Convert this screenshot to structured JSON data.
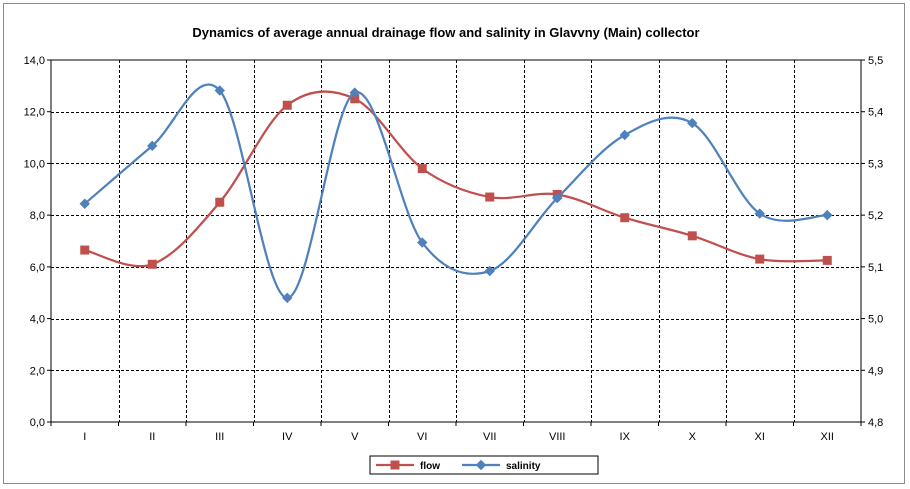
{
  "chart_data": {
    "type": "line",
    "title": "Dynamics  of average annual drainage flow and salinity in Glavvny (Main) collector",
    "categories": [
      "I",
      "II",
      "III",
      "IV",
      "V",
      "VI",
      "VII",
      "VIII",
      "IX",
      "X",
      "XI",
      "XII"
    ],
    "y_left": {
      "min": 0,
      "max": 14,
      "step": 2,
      "tick_labels": [
        "0,0",
        "2,0",
        "4,0",
        "6,0",
        "8,0",
        "10,0",
        "12,0",
        "14,0"
      ]
    },
    "y_right": {
      "min": 4.8,
      "max": 5.5,
      "step": 0.1,
      "tick_labels": [
        "4,8",
        "4,9",
        "5,0",
        "5,1",
        "5,2",
        "5,3",
        "5,4",
        "5,5"
      ]
    },
    "grid": {
      "horizontal": true,
      "vertical": true,
      "style": "dashed"
    },
    "legend_position": "bottom",
    "series": [
      {
        "name": "flow",
        "axis": "left",
        "color": "#c0504d",
        "marker": "square",
        "smooth": true,
        "values": [
          6.65,
          6.1,
          8.5,
          12.25,
          12.5,
          9.8,
          8.7,
          8.8,
          7.9,
          7.2,
          6.3,
          6.25
        ]
      },
      {
        "name": "salinity",
        "axis": "right",
        "color": "#4f81bd",
        "marker": "diamond",
        "smooth": true,
        "values": [
          5.222,
          5.334,
          5.441,
          5.04,
          5.437,
          5.147,
          5.092,
          5.233,
          5.355,
          5.378,
          5.203,
          5.2
        ]
      }
    ]
  }
}
